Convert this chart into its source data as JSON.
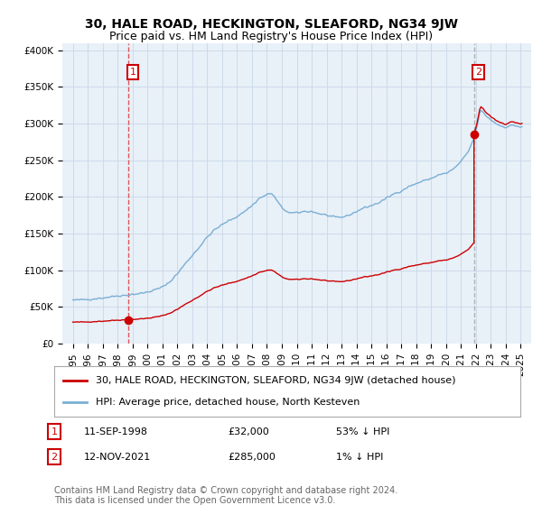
{
  "title": "30, HALE ROAD, HECKINGTON, SLEAFORD, NG34 9JW",
  "subtitle": "Price paid vs. HM Land Registry's House Price Index (HPI)",
  "ylabel_ticks": [
    "£0",
    "£50K",
    "£100K",
    "£150K",
    "£200K",
    "£250K",
    "£300K",
    "£350K",
    "£400K"
  ],
  "ytick_values": [
    0,
    50000,
    100000,
    150000,
    200000,
    250000,
    300000,
    350000,
    400000
  ],
  "ylim": [
    0,
    410000
  ],
  "sale1_x": 1998.71,
  "sale1_price": 32000,
  "sale1_label": "1",
  "sale1_year_str": "11-SEP-1998",
  "sale1_price_str": "£32,000",
  "sale1_hpi_str": "53% ↓ HPI",
  "sale2_x": 2021.87,
  "sale2_price": 285000,
  "sale2_label": "2",
  "sale2_year_str": "12-NOV-2021",
  "sale2_price_str": "£285,000",
  "sale2_hpi_str": "1% ↓ HPI",
  "legend1": "30, HALE ROAD, HECKINGTON, SLEAFORD, NG34 9JW (detached house)",
  "legend2": "HPI: Average price, detached house, North Kesteven",
  "footnote": "Contains HM Land Registry data © Crown copyright and database right 2024.\nThis data is licensed under the Open Government Licence v3.0.",
  "sale_color": "#cc0000",
  "hpi_color": "#7aafd4",
  "vline1_color": "#dd4444",
  "vline2_color": "#aaaaaa",
  "plot_bg_color": "#e8f0f8",
  "background_color": "#ffffff",
  "grid_color": "#c8d8e8",
  "title_fontsize": 10,
  "subtitle_fontsize": 9,
  "tick_fontsize": 7.5,
  "legend_fontsize": 8,
  "footnote_fontsize": 7,
  "xlim_left": 1994.3,
  "xlim_right": 2025.7
}
